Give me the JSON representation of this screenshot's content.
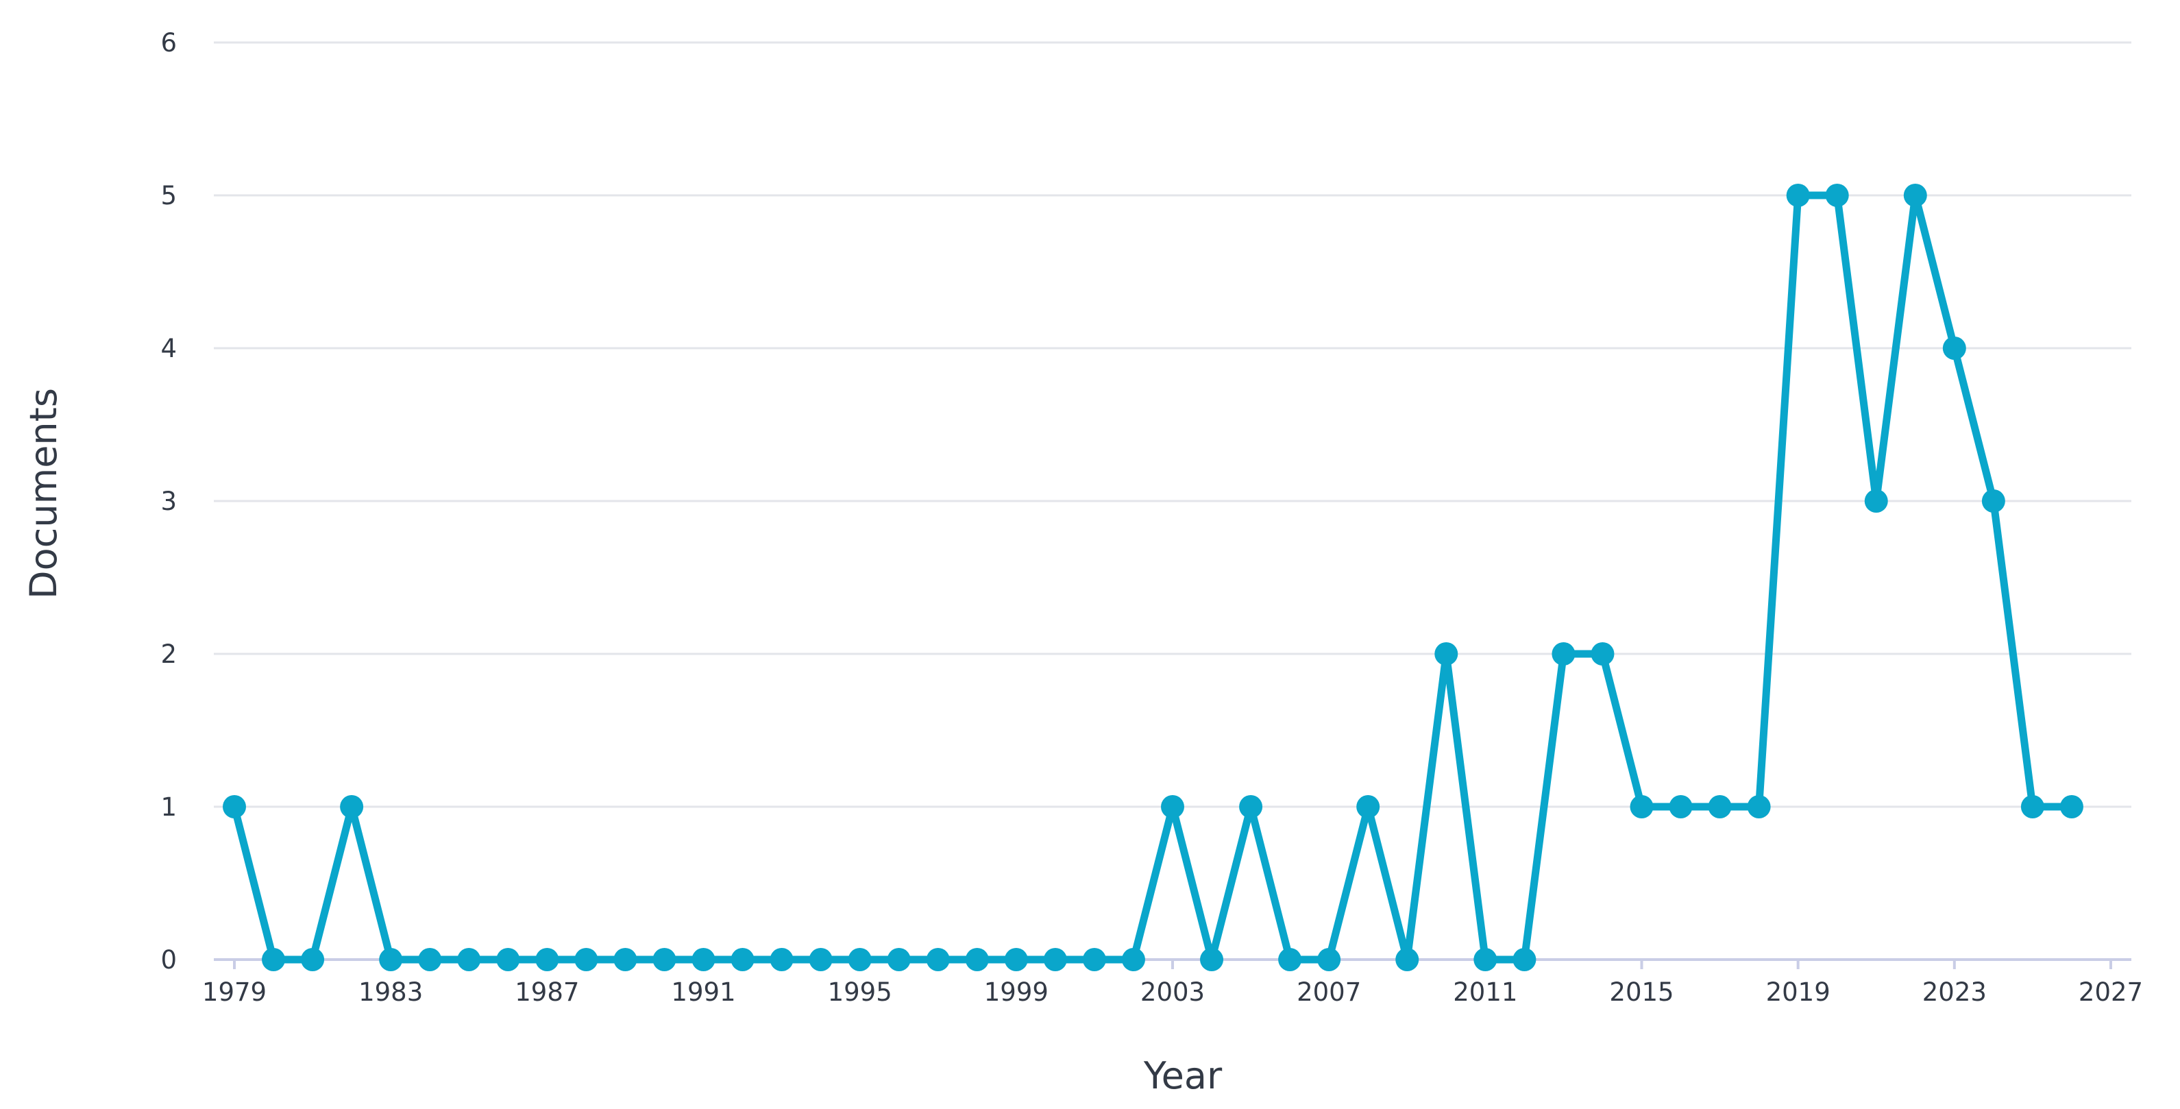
{
  "chart_data": {
    "type": "line",
    "xlabel": "Year",
    "ylabel": "Documents",
    "xlim": [
      1979,
      2027
    ],
    "ylim": [
      0,
      6
    ],
    "x_ticks": [
      1979,
      1983,
      1987,
      1991,
      1995,
      1999,
      2003,
      2007,
      2011,
      2015,
      2019,
      2023,
      2027
    ],
    "y_ticks": [
      0,
      1,
      2,
      3,
      4,
      5,
      6
    ],
    "grid": true,
    "legend": "none",
    "colors": {
      "series": "#0aa6cb",
      "grid": "#e3e5ea",
      "baseline": "#c9cde6",
      "text": "#333a46"
    },
    "x": [
      1979,
      1980,
      1981,
      1982,
      1983,
      1984,
      1985,
      1986,
      1987,
      1988,
      1989,
      1990,
      1991,
      1992,
      1993,
      1994,
      1995,
      1996,
      1997,
      1998,
      1999,
      2000,
      2001,
      2002,
      2003,
      2004,
      2005,
      2006,
      2007,
      2008,
      2009,
      2010,
      2011,
      2012,
      2013,
      2014,
      2015,
      2016,
      2017,
      2018,
      2019,
      2020,
      2021,
      2022,
      2023,
      2024,
      2025,
      2026
    ],
    "series": [
      {
        "values": [
          1,
          0,
          0,
          1,
          0,
          0,
          0,
          0,
          0,
          0,
          0,
          0,
          0,
          0,
          0,
          0,
          0,
          0,
          0,
          0,
          0,
          0,
          0,
          0,
          1,
          0,
          1,
          0,
          0,
          1,
          0,
          2,
          0,
          0,
          2,
          2,
          1,
          1,
          1,
          1,
          5,
          5,
          3,
          5,
          4,
          3,
          1,
          1
        ]
      }
    ]
  }
}
